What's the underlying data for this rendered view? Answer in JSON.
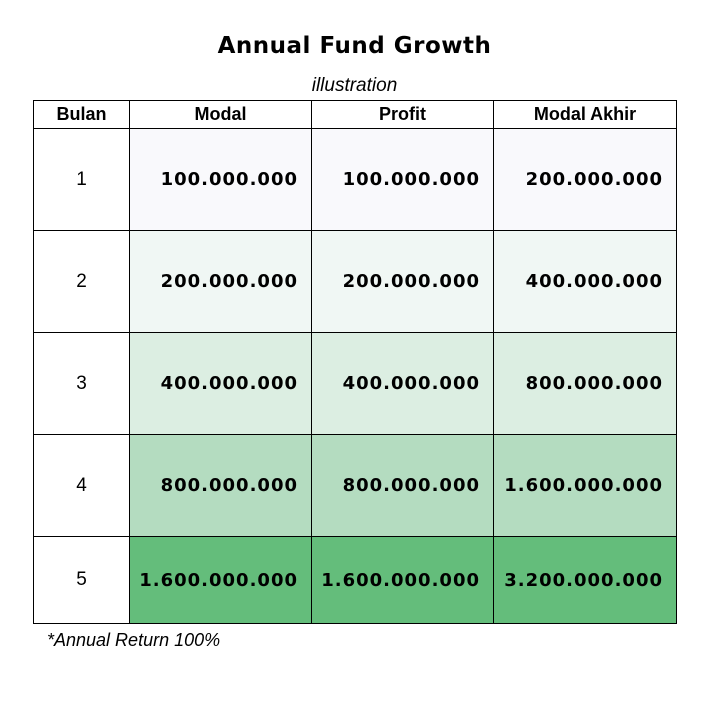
{
  "title": "Annual Fund Growth",
  "subtitle": "illustration",
  "headers": {
    "month": "Bulan",
    "capital": "Modal",
    "profit": "Profit",
    "final_capital": "Modal Akhir"
  },
  "rows": [
    {
      "month": "1",
      "capital": "100.000.000",
      "profit": "100.000.000",
      "final_capital": "200.000.000",
      "fill": "#f9f9fc"
    },
    {
      "month": "2",
      "capital": "200.000.000",
      "profit": "200.000.000",
      "final_capital": "400.000.000",
      "fill": "#f0f7f4"
    },
    {
      "month": "3",
      "capital": "400.000.000",
      "profit": "400.000.000",
      "final_capital": "800.000.000",
      "fill": "#dceee2"
    },
    {
      "month": "4",
      "capital": "800.000.000",
      "profit": "800.000.000",
      "final_capital": "1.600.000.000",
      "fill": "#b4dcc0"
    },
    {
      "month": "5",
      "capital": "1.600.000.000",
      "profit": "1.600.000.000",
      "final_capital": "3.200.000.000",
      "fill": "#64bd7b"
    }
  ],
  "footnote": "*Annual Return 100%"
}
